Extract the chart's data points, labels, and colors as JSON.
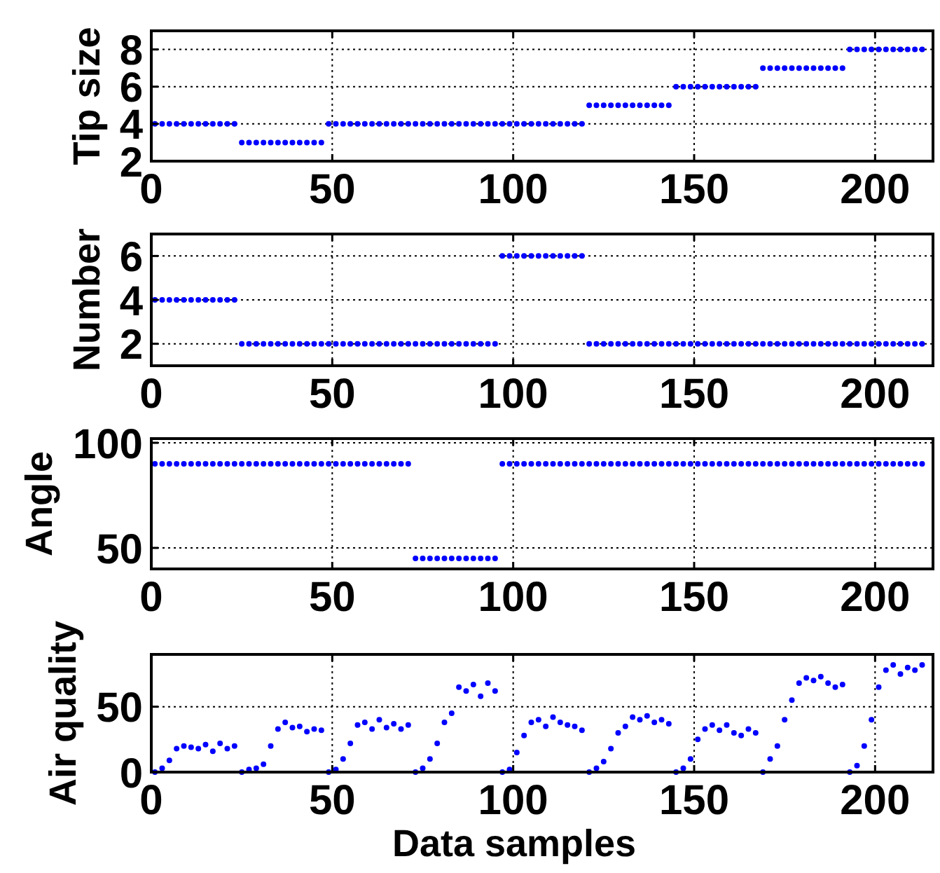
{
  "chart_data": [
    {
      "type": "scatter",
      "ylabel": "Tip size",
      "color": "#0000ff",
      "marker": "circle",
      "grid": true,
      "xlim": [
        0,
        216
      ],
      "xticks": [
        0,
        50,
        100,
        150,
        200
      ],
      "ylim": [
        2,
        9
      ],
      "yticks": [
        2,
        4,
        6,
        8
      ],
      "x": [
        1,
        3,
        5,
        7,
        9,
        11,
        13,
        15,
        17,
        19,
        21,
        23,
        25,
        27,
        29,
        31,
        33,
        35,
        37,
        39,
        41,
        43,
        45,
        47,
        49,
        51,
        53,
        55,
        57,
        59,
        61,
        63,
        65,
        67,
        69,
        71,
        73,
        75,
        77,
        79,
        81,
        83,
        85,
        87,
        89,
        91,
        93,
        95,
        97,
        99,
        101,
        103,
        105,
        107,
        109,
        111,
        113,
        115,
        117,
        119,
        121,
        123,
        125,
        127,
        129,
        131,
        133,
        135,
        137,
        139,
        141,
        143,
        145,
        147,
        149,
        151,
        153,
        155,
        157,
        159,
        161,
        163,
        165,
        167,
        169,
        171,
        173,
        175,
        177,
        179,
        181,
        183,
        185,
        187,
        189,
        191,
        193,
        195,
        197,
        199,
        201,
        203,
        205,
        207,
        209,
        211,
        213
      ],
      "values": [
        4,
        4,
        4,
        4,
        4,
        4,
        4,
        4,
        4,
        4,
        4,
        4,
        3,
        3,
        3,
        3,
        3,
        3,
        3,
        3,
        3,
        3,
        3,
        3,
        4,
        4,
        4,
        4,
        4,
        4,
        4,
        4,
        4,
        4,
        4,
        4,
        4,
        4,
        4,
        4,
        4,
        4,
        4,
        4,
        4,
        4,
        4,
        4,
        4,
        4,
        4,
        4,
        4,
        4,
        4,
        4,
        4,
        4,
        4,
        4,
        5,
        5,
        5,
        5,
        5,
        5,
        5,
        5,
        5,
        5,
        5,
        5,
        6,
        6,
        6,
        6,
        6,
        6,
        6,
        6,
        6,
        6,
        6,
        6,
        7,
        7,
        7,
        7,
        7,
        7,
        7,
        7,
        7,
        7,
        7,
        7,
        8,
        8,
        8,
        8,
        8,
        8,
        8,
        8,
        8,
        8,
        8
      ]
    },
    {
      "type": "scatter",
      "ylabel": "Number",
      "color": "#0000ff",
      "marker": "circle",
      "grid": true,
      "xlim": [
        0,
        216
      ],
      "xticks": [
        0,
        50,
        100,
        150,
        200
      ],
      "ylim": [
        1,
        7
      ],
      "yticks": [
        2,
        4,
        6
      ],
      "x": [
        1,
        3,
        5,
        7,
        9,
        11,
        13,
        15,
        17,
        19,
        21,
        23,
        25,
        27,
        29,
        31,
        33,
        35,
        37,
        39,
        41,
        43,
        45,
        47,
        49,
        51,
        53,
        55,
        57,
        59,
        61,
        63,
        65,
        67,
        69,
        71,
        73,
        75,
        77,
        79,
        81,
        83,
        85,
        87,
        89,
        91,
        93,
        95,
        97,
        99,
        101,
        103,
        105,
        107,
        109,
        111,
        113,
        115,
        117,
        119,
        121,
        123,
        125,
        127,
        129,
        131,
        133,
        135,
        137,
        139,
        141,
        143,
        145,
        147,
        149,
        151,
        153,
        155,
        157,
        159,
        161,
        163,
        165,
        167,
        169,
        171,
        173,
        175,
        177,
        179,
        181,
        183,
        185,
        187,
        189,
        191,
        193,
        195,
        197,
        199,
        201,
        203,
        205,
        207,
        209,
        211,
        213
      ],
      "values": [
        4,
        4,
        4,
        4,
        4,
        4,
        4,
        4,
        4,
        4,
        4,
        4,
        2,
        2,
        2,
        2,
        2,
        2,
        2,
        2,
        2,
        2,
        2,
        2,
        2,
        2,
        2,
        2,
        2,
        2,
        2,
        2,
        2,
        2,
        2,
        2,
        2,
        2,
        2,
        2,
        2,
        2,
        2,
        2,
        2,
        2,
        2,
        2,
        6,
        6,
        6,
        6,
        6,
        6,
        6,
        6,
        6,
        6,
        6,
        6,
        2,
        2,
        2,
        2,
        2,
        2,
        2,
        2,
        2,
        2,
        2,
        2,
        2,
        2,
        2,
        2,
        2,
        2,
        2,
        2,
        2,
        2,
        2,
        2,
        2,
        2,
        2,
        2,
        2,
        2,
        2,
        2,
        2,
        2,
        2,
        2,
        2,
        2,
        2,
        2,
        2,
        2,
        2,
        2,
        2,
        2,
        2
      ]
    },
    {
      "type": "scatter",
      "ylabel": "Angle",
      "color": "#0000ff",
      "marker": "circle",
      "grid": true,
      "xlim": [
        0,
        216
      ],
      "xticks": [
        0,
        50,
        100,
        150,
        200
      ],
      "ylim": [
        40,
        102
      ],
      "yticks": [
        50,
        100
      ],
      "x": [
        1,
        3,
        5,
        7,
        9,
        11,
        13,
        15,
        17,
        19,
        21,
        23,
        25,
        27,
        29,
        31,
        33,
        35,
        37,
        39,
        41,
        43,
        45,
        47,
        49,
        51,
        53,
        55,
        57,
        59,
        61,
        63,
        65,
        67,
        69,
        71,
        73,
        75,
        77,
        79,
        81,
        83,
        85,
        87,
        89,
        91,
        93,
        95,
        97,
        99,
        101,
        103,
        105,
        107,
        109,
        111,
        113,
        115,
        117,
        119,
        121,
        123,
        125,
        127,
        129,
        131,
        133,
        135,
        137,
        139,
        141,
        143,
        145,
        147,
        149,
        151,
        153,
        155,
        157,
        159,
        161,
        163,
        165,
        167,
        169,
        171,
        173,
        175,
        177,
        179,
        181,
        183,
        185,
        187,
        189,
        191,
        193,
        195,
        197,
        199,
        201,
        203,
        205,
        207,
        209,
        211,
        213
      ],
      "values": [
        90,
        90,
        90,
        90,
        90,
        90,
        90,
        90,
        90,
        90,
        90,
        90,
        90,
        90,
        90,
        90,
        90,
        90,
        90,
        90,
        90,
        90,
        90,
        90,
        90,
        90,
        90,
        90,
        90,
        90,
        90,
        90,
        90,
        90,
        90,
        90,
        45,
        45,
        45,
        45,
        45,
        45,
        45,
        45,
        45,
        45,
        45,
        45,
        90,
        90,
        90,
        90,
        90,
        90,
        90,
        90,
        90,
        90,
        90,
        90,
        90,
        90,
        90,
        90,
        90,
        90,
        90,
        90,
        90,
        90,
        90,
        90,
        90,
        90,
        90,
        90,
        90,
        90,
        90,
        90,
        90,
        90,
        90,
        90,
        90,
        90,
        90,
        90,
        90,
        90,
        90,
        90,
        90,
        90,
        90,
        90,
        90,
        90,
        90,
        90,
        90,
        90,
        90,
        90,
        90,
        90,
        90
      ]
    },
    {
      "type": "scatter",
      "ylabel": "Air quality",
      "xlabel": "Data samples",
      "color": "#0000ff",
      "marker": "circle",
      "grid": true,
      "xlim": [
        0,
        216
      ],
      "xticks": [
        0,
        50,
        100,
        150,
        200
      ],
      "ylim": [
        0,
        90
      ],
      "yticks": [
        0,
        50
      ],
      "x": [
        1,
        3,
        5,
        7,
        9,
        11,
        13,
        15,
        17,
        19,
        21,
        23,
        25,
        27,
        29,
        31,
        33,
        35,
        37,
        39,
        41,
        43,
        45,
        47,
        49,
        51,
        53,
        55,
        57,
        59,
        61,
        63,
        65,
        67,
        69,
        71,
        73,
        75,
        77,
        79,
        81,
        83,
        85,
        87,
        89,
        91,
        93,
        95,
        97,
        99,
        101,
        103,
        105,
        107,
        109,
        111,
        113,
        115,
        117,
        119,
        121,
        123,
        125,
        127,
        129,
        131,
        133,
        135,
        137,
        139,
        141,
        143,
        145,
        147,
        149,
        151,
        153,
        155,
        157,
        159,
        161,
        163,
        165,
        167,
        169,
        171,
        173,
        175,
        177,
        179,
        181,
        183,
        185,
        187,
        189,
        191,
        193,
        195,
        197,
        199,
        201,
        203,
        205,
        207,
        209,
        211,
        213
      ],
      "values": [
        0,
        3,
        9,
        18,
        20,
        19,
        18,
        21,
        16,
        22,
        18,
        20,
        0,
        2,
        3,
        6,
        20,
        33,
        38,
        34,
        35,
        31,
        33,
        32,
        0,
        2,
        10,
        22,
        36,
        38,
        33,
        40,
        34,
        37,
        33,
        36,
        0,
        3,
        10,
        22,
        38,
        45,
        65,
        62,
        67,
        58,
        68,
        62,
        0,
        2,
        15,
        28,
        38,
        40,
        35,
        42,
        38,
        36,
        35,
        32,
        0,
        3,
        8,
        18,
        30,
        35,
        42,
        40,
        43,
        38,
        40,
        37,
        0,
        3,
        10,
        25,
        33,
        36,
        32,
        36,
        30,
        28,
        33,
        30,
        0,
        10,
        20,
        40,
        55,
        68,
        72,
        70,
        73,
        68,
        65,
        67,
        0,
        5,
        20,
        40,
        65,
        78,
        82,
        75,
        80,
        78,
        82
      ]
    }
  ]
}
